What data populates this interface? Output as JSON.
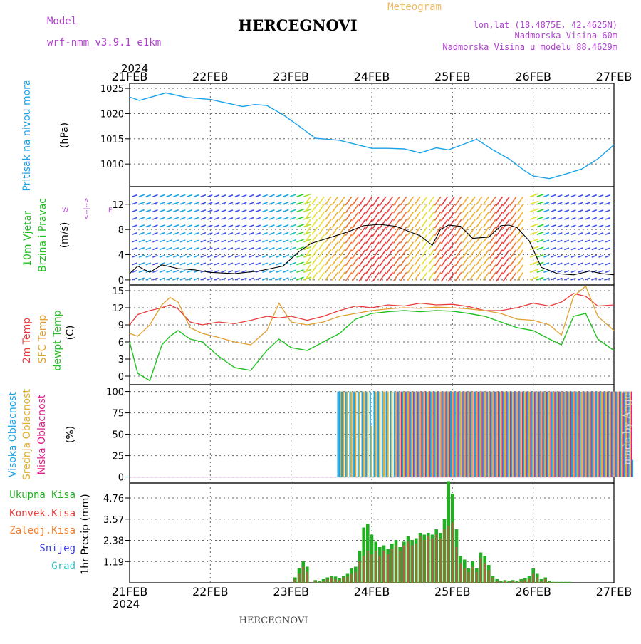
{
  "header": {
    "model_label": "Model",
    "model_name": "wrf-nmm_v3.9.1 e1km",
    "title": "HERCEGNOVI",
    "meteogram_label": "Meteogram",
    "lonlat": "lon,lat (18.4875E, 42.4625N)",
    "elevation": "Nadmorska Visina 60m",
    "model_elevation": "Nadmorska Visina u modelu 88.4629m",
    "year": "2024"
  },
  "footer": {
    "station": "HERCEGNOVI",
    "year": "2024",
    "credit": "made by Angel"
  },
  "colors": {
    "pressure": "#1aa3e8",
    "temp2m": "#e83c3c",
    "sfc": "#e0a030",
    "dewpt": "#22c022",
    "high_cloud": "#1aa3e8",
    "mid_cloud": "#e0b030",
    "low_cloud": "#e0208a",
    "total_precip": "#22b022",
    "convective": "#e83c3c",
    "frozen": "#f08030",
    "snow": "#3c3ce8",
    "hail": "#20c0c0",
    "panel_label_purple": "#b040d0"
  },
  "time_axis": {
    "labels": [
      "21FEB",
      "22FEB",
      "23FEB",
      "24FEB",
      "25FEB",
      "26FEB",
      "27FEB"
    ]
  },
  "panels": {
    "pressure": {
      "label": "Pritisak na nivou mora",
      "unit": "(hPa)"
    },
    "wind": {
      "label1": "10m Vjetar",
      "label2": "Brzina i Pravac",
      "unit": "(m/s)",
      "compass": {
        "n": "N",
        "s": "S",
        "e": "E",
        "w": "W",
        "arrows": "<--|-->"
      }
    },
    "temperature": {
      "label_2m": "2m Temp",
      "label_sfc": "SFC Temp",
      "label_dew": "dewpt Temp",
      "unit": "(C)"
    },
    "cloud": {
      "label_high": "Visoka Oblacnost",
      "label_mid": "Srednja Oblacnost",
      "label_low": "Niska Oblacnost",
      "unit": "(%)"
    },
    "precip": {
      "legend": [
        "Ukupna Kisa",
        "Konvek.Kisa",
        "Zaledj.Kisa",
        "Snijeg",
        "Grad"
      ],
      "ylabel": "1hr Precip (mm)"
    }
  },
  "chart_data": [
    {
      "type": "line",
      "name": "Sea level pressure",
      "title": "",
      "ylabel": "Pritisak na nivou mora (hPa)",
      "ylim": [
        1005.5,
        1026
      ],
      "yticks": [
        1010,
        1015,
        1020,
        1025
      ],
      "grid": true,
      "x": [
        0,
        0.12,
        0.25,
        0.45,
        0.7,
        1.0,
        1.2,
        1.4,
        1.55,
        1.7,
        1.9,
        2.1,
        2.3,
        2.6,
        2.8,
        3.0,
        3.2,
        3.4,
        3.6,
        3.8,
        3.95,
        4.1,
        4.3,
        4.5,
        4.7,
        4.9,
        5.0,
        5.2,
        5.4,
        5.6,
        5.8,
        6.0
      ],
      "series": [
        {
          "values": [
            1023.3,
            1022.6,
            1023.2,
            1024.1,
            1023.2,
            1022.8,
            1022.1,
            1021.4,
            1021.8,
            1021.6,
            1019.8,
            1017.5,
            1015.1,
            1014.7,
            1013.9,
            1013.1,
            1013.1,
            1013.0,
            1012.2,
            1013.2,
            1012.8,
            1013.7,
            1014.9,
            1012.8,
            1011.0,
            1008.6,
            1007.6,
            1007.1,
            1008.0,
            1009.0,
            1011.0,
            1013.8
          ]
        }
      ]
    },
    {
      "type": "line",
      "name": "10m wind",
      "ylabel": "10m Vjetar Brzina i Pravac (m/s)",
      "ylim": [
        -0.8,
        14.8
      ],
      "yticks": [
        0,
        4,
        8,
        12
      ],
      "grid": true,
      "x": [
        0,
        0.1,
        0.25,
        0.4,
        0.6,
        0.8,
        1.0,
        1.3,
        1.6,
        1.9,
        2.1,
        2.25,
        2.5,
        2.7,
        2.9,
        3.1,
        3.3,
        3.5,
        3.6,
        3.75,
        3.85,
        3.95,
        4.1,
        4.25,
        4.45,
        4.6,
        4.7,
        4.8,
        4.95,
        5.1,
        5.3,
        5.5,
        5.7,
        5.85,
        6.0
      ],
      "series": [
        {
          "values": [
            1.0,
            2.2,
            1.2,
            2.4,
            1.8,
            1.6,
            1.2,
            1.0,
            1.4,
            2.2,
            4.5,
            5.8,
            6.8,
            7.6,
            8.6,
            8.8,
            8.5,
            7.5,
            7.0,
            5.5,
            8.0,
            8.7,
            8.5,
            6.6,
            6.8,
            8.6,
            8.7,
            8.3,
            6.2,
            2.0,
            1.0,
            0.8,
            1.4,
            1.0,
            0.8
          ]
        }
      ]
    },
    {
      "type": "line",
      "name": "Temperature",
      "ylabel": "(C)",
      "ylim": [
        -1.5,
        16
      ],
      "yticks": [
        0,
        3,
        6,
        9,
        12,
        15
      ],
      "grid": true,
      "x": [
        0,
        0.1,
        0.25,
        0.4,
        0.5,
        0.6,
        0.75,
        0.9,
        1.1,
        1.3,
        1.5,
        1.7,
        1.85,
        2.0,
        2.2,
        2.4,
        2.6,
        2.8,
        3.0,
        3.2,
        3.4,
        3.6,
        3.8,
        4.0,
        4.2,
        4.4,
        4.6,
        4.8,
        5.0,
        5.2,
        5.35,
        5.5,
        5.65,
        5.8,
        6.0
      ],
      "series": [
        {
          "name": "2m Temp",
          "values": [
            9.0,
            10.8,
            11.5,
            12.0,
            12.5,
            11.8,
            9.5,
            9.0,
            9.5,
            9.2,
            9.8,
            10.5,
            10.2,
            10.5,
            9.8,
            10.5,
            11.5,
            12.3,
            12.0,
            12.5,
            12.3,
            12.8,
            12.5,
            12.6,
            12.2,
            11.5,
            11.5,
            12.0,
            12.8,
            12.3,
            13.0,
            14.5,
            14.0,
            12.3,
            12.5
          ]
        },
        {
          "name": "SFC Temp",
          "values": [
            7.5,
            7.0,
            9.0,
            12.5,
            13.8,
            13.0,
            8.5,
            7.5,
            6.8,
            6.0,
            5.5,
            8.0,
            12.8,
            9.5,
            9.0,
            9.5,
            10.5,
            11.0,
            11.5,
            11.8,
            12.0,
            11.9,
            12.1,
            12.0,
            11.8,
            11.5,
            11.0,
            10.0,
            9.8,
            9.0,
            7.2,
            14.0,
            15.8,
            10.5,
            8.0
          ]
        },
        {
          "name": "dewpt Temp",
          "values": [
            6.0,
            0.5,
            -0.8,
            5.5,
            7.0,
            8.0,
            6.5,
            6.0,
            3.5,
            1.5,
            1.0,
            4.5,
            6.5,
            5.0,
            4.5,
            6.0,
            7.5,
            10.0,
            11.0,
            11.3,
            11.5,
            11.3,
            11.5,
            11.4,
            11.0,
            10.5,
            9.5,
            8.5,
            8.0,
            6.5,
            5.5,
            10.5,
            11.0,
            6.5,
            4.5
          ]
        }
      ]
    },
    {
      "type": "bar",
      "name": "Cloud cover",
      "ylabel": "(%)",
      "ylim": [
        -7,
        108
      ],
      "yticks": [
        0,
        25,
        50,
        75,
        100
      ],
      "grid": true,
      "x": [
        2.6,
        2.62,
        2.65,
        2.7,
        2.75,
        2.8,
        2.85,
        2.9,
        2.95,
        3.0,
        3.05,
        3.1,
        3.15,
        3.2,
        3.25,
        3.3,
        3.35,
        3.4,
        3.45,
        3.5,
        3.55,
        3.6,
        3.65,
        3.7,
        3.75,
        3.8,
        3.85,
        3.9,
        3.95,
        4.0,
        4.05,
        4.1,
        4.15,
        4.2,
        4.25,
        4.3,
        4.35,
        4.4,
        4.45,
        4.5,
        4.55,
        4.6,
        4.65,
        4.7,
        4.75,
        4.8,
        4.85,
        4.9,
        4.95,
        5.0,
        5.05,
        5.1,
        5.15,
        5.2,
        5.25,
        5.3,
        5.35,
        5.4,
        5.45,
        5.5,
        5.55,
        5.6,
        5.65,
        5.7,
        5.75,
        5.8,
        5.85,
        5.9,
        5.95,
        6.0,
        6.05,
        6.1,
        6.15,
        6.2,
        6.25
      ],
      "series": [
        {
          "name": "Visoka Oblacnost",
          "values": [
            100,
            100,
            100,
            100,
            100,
            100,
            100,
            100,
            100,
            100,
            100,
            100,
            100,
            100,
            100,
            100,
            100,
            100,
            100,
            100,
            100,
            100,
            100,
            100,
            100,
            100,
            100,
            100,
            100,
            100,
            100,
            100,
            100,
            100,
            100,
            100,
            100,
            100,
            100,
            100,
            100,
            100,
            100,
            100,
            100,
            100,
            100,
            100,
            100,
            100,
            100,
            100,
            100,
            100,
            100,
            100,
            100,
            100,
            100,
            100,
            100,
            100,
            100,
            100,
            100,
            100,
            100,
            100,
            100,
            100,
            100,
            100,
            100,
            100,
            20
          ]
        },
        {
          "name": "Srednja Oblacnost",
          "values": [
            100,
            100,
            100,
            100,
            100,
            100,
            100,
            100,
            100,
            60,
            100,
            100,
            100,
            100,
            100,
            100,
            100,
            100,
            100,
            100,
            100,
            100,
            100,
            100,
            100,
            100,
            100,
            100,
            100,
            100,
            100,
            100,
            100,
            100,
            100,
            100,
            100,
            100,
            100,
            100,
            100,
            100,
            100,
            100,
            100,
            100,
            100,
            100,
            100,
            100,
            100,
            100,
            100,
            100,
            100,
            100,
            100,
            100,
            100,
            100,
            100,
            100,
            100,
            100,
            100,
            100,
            100,
            100,
            100,
            100,
            100,
            100,
            100,
            100,
            0
          ]
        },
        {
          "name": "Niska Oblacnost",
          "values": [
            0,
            0,
            0,
            0,
            0,
            0,
            0,
            0,
            0,
            0,
            0,
            0,
            0,
            0,
            0,
            100,
            100,
            100,
            100,
            100,
            100,
            100,
            100,
            100,
            100,
            100,
            100,
            100,
            100,
            100,
            100,
            100,
            100,
            100,
            100,
            100,
            100,
            100,
            100,
            100,
            100,
            100,
            100,
            100,
            100,
            100,
            100,
            100,
            100,
            100,
            100,
            100,
            100,
            100,
            100,
            100,
            100,
            100,
            100,
            100,
            100,
            100,
            100,
            100,
            100,
            100,
            100,
            100,
            100,
            100,
            100,
            100,
            100,
            100,
            0
          ]
        }
      ]
    },
    {
      "type": "bar",
      "name": "1hr precipitation",
      "ylabel": "1hr Precip (mm)",
      "ylim": [
        0,
        5.6
      ],
      "yticks": [
        1.19,
        2.38,
        3.57,
        4.76
      ],
      "grid": true,
      "x": [
        2.05,
        2.1,
        2.15,
        2.2,
        2.3,
        2.35,
        2.4,
        2.45,
        2.5,
        2.55,
        2.6,
        2.65,
        2.7,
        2.75,
        2.8,
        2.85,
        2.9,
        2.95,
        3.0,
        3.05,
        3.1,
        3.15,
        3.2,
        3.25,
        3.3,
        3.35,
        3.4,
        3.45,
        3.5,
        3.55,
        3.6,
        3.65,
        3.7,
        3.75,
        3.8,
        3.85,
        3.9,
        3.95,
        4.0,
        4.05,
        4.1,
        4.15,
        4.2,
        4.25,
        4.3,
        4.35,
        4.4,
        4.45,
        4.5,
        4.55,
        4.6,
        4.65,
        4.7,
        4.75,
        4.8,
        4.85,
        4.9,
        4.95,
        5.0,
        5.05,
        5.1,
        5.15,
        5.2,
        5.25,
        5.3,
        5.35,
        5.4,
        5.45
      ],
      "series": [
        {
          "name": "Ukupna Kisa",
          "values": [
            0.3,
            0.8,
            1.2,
            0.9,
            0.15,
            0.1,
            0.2,
            0.3,
            0.4,
            0.35,
            0.25,
            0.4,
            0.5,
            0.8,
            0.9,
            1.8,
            3.1,
            3.3,
            2.7,
            2.3,
            2.0,
            2.1,
            1.9,
            2.2,
            2.4,
            2.0,
            2.3,
            2.6,
            2.4,
            2.5,
            2.8,
            2.7,
            2.8,
            2.7,
            3.0,
            2.8,
            3.6,
            5.7,
            5.0,
            3.0,
            1.5,
            1.3,
            0.8,
            1.2,
            0.8,
            1.7,
            1.5,
            1.0,
            0.4,
            0.2,
            0.1,
            0.15,
            0.1,
            0.15,
            0.1,
            0.2,
            0.25,
            0.4,
            0.8,
            0.5,
            0.2,
            0.3,
            0.1,
            0.05,
            0.05,
            0.05,
            0.05,
            0.05
          ]
        },
        {
          "name": "Konvek.Kisa",
          "values": [
            0.2,
            0.5,
            0.9,
            0.6,
            0.1,
            0.05,
            0.1,
            0.2,
            0.3,
            0.2,
            0.15,
            0.3,
            0.35,
            0.5,
            0.6,
            1.2,
            1.5,
            1.8,
            1.6,
            1.8,
            1.5,
            1.8,
            1.6,
            1.9,
            2.1,
            1.8,
            2.1,
            2.3,
            2.1,
            2.2,
            2.6,
            2.4,
            2.6,
            2.5,
            2.7,
            2.5,
            3.0,
            3.2,
            3.4,
            2.0,
            1.1,
            0.8,
            0.6,
            0.9,
            0.6,
            1.4,
            1.1,
            0.7,
            0.3,
            0.1,
            0.05,
            0.1,
            0.05,
            0.1,
            0.05,
            0.1,
            0.15,
            0.2,
            0.5,
            0.3,
            0.1,
            0.2,
            0.05,
            0.02,
            0.02,
            0.02,
            0.02,
            0.02
          ]
        }
      ]
    }
  ]
}
